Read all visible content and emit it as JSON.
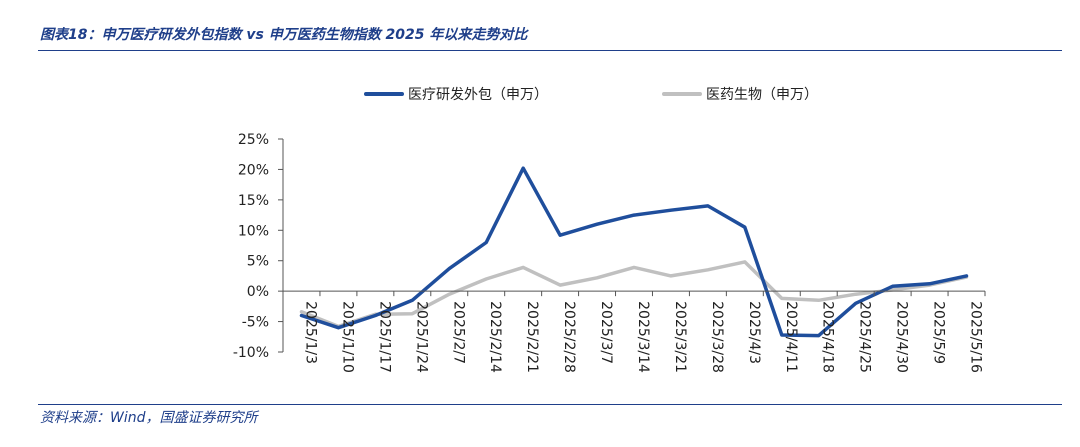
{
  "header": {
    "title": "图表18：申万医疗研发外包指数 vs 申万医药生物指数 2025 年以来走势对比"
  },
  "footer": {
    "source": "资料来源：Wind，国盛证券研究所"
  },
  "chart_data": {
    "type": "line",
    "title": "",
    "xlabel": "",
    "ylabel": "",
    "ylim": [
      -0.1,
      0.25
    ],
    "y_ticks": [
      -0.1,
      -0.05,
      0,
      0.05,
      0.1,
      0.15,
      0.2,
      0.25
    ],
    "y_tick_labels": [
      "-10%",
      "-5%",
      "0%",
      "5%",
      "10%",
      "15%",
      "20%",
      "25%"
    ],
    "legend_position": "top-center",
    "grid": false,
    "categories": [
      "2025/1/3",
      "2025/1/10",
      "2025/1/17",
      "2025/1/24",
      "2025/2/7",
      "2025/2/14",
      "2025/2/21",
      "2025/2/28",
      "2025/3/7",
      "2025/3/14",
      "2025/3/21",
      "2025/3/28",
      "2025/4/3",
      "2025/4/11",
      "2025/4/18",
      "2025/4/25",
      "2025/4/30",
      "2025/5/9",
      "2025/5/16"
    ],
    "series": [
      {
        "name": "医疗研发外包（申万）",
        "color": "#1f4e9c",
        "values": [
          -0.04,
          -0.06,
          -0.04,
          -0.015,
          0.037,
          0.08,
          0.202,
          0.092,
          0.11,
          0.125,
          0.133,
          0.14,
          0.105,
          -0.072,
          -0.073,
          -0.02,
          0.008,
          0.012,
          0.025
        ]
      },
      {
        "name": "医药生物（申万）",
        "color": "#c0c0c0",
        "values": [
          -0.034,
          -0.058,
          -0.038,
          -0.037,
          -0.005,
          0.02,
          0.039,
          0.01,
          0.022,
          0.039,
          0.025,
          0.035,
          0.048,
          -0.012,
          -0.015,
          -0.005,
          0.002,
          0.01,
          0.023
        ]
      }
    ]
  }
}
